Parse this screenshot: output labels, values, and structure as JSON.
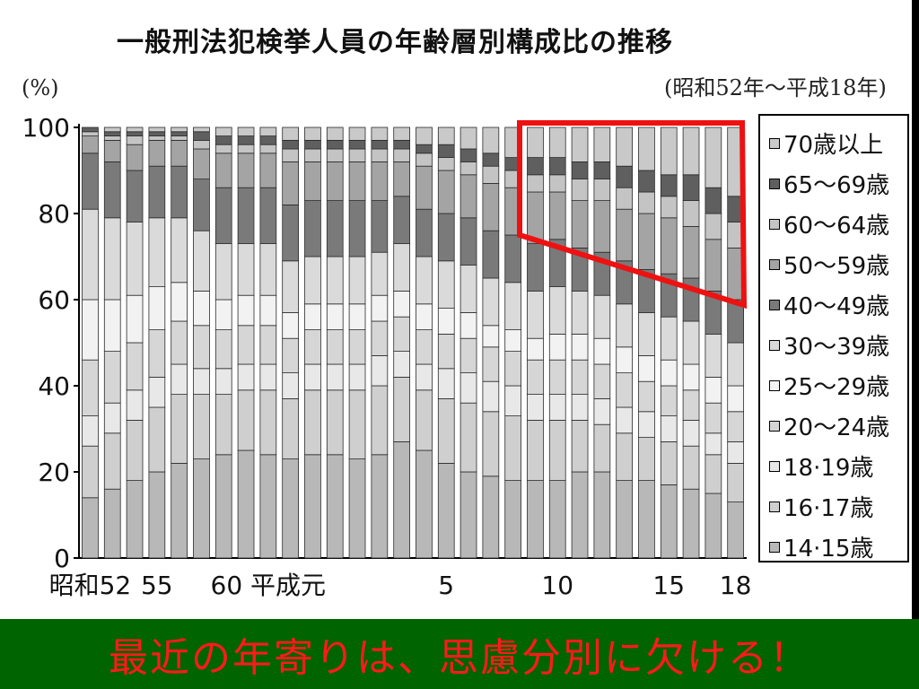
{
  "title": "一般刑法犯検挙人員の年齢層別構成比の推移",
  "period": "(昭和52年～平成18年)",
  "y_unit": "(%)",
  "banner": "最近の年寄りは、思慮分別に欠ける！",
  "colors": {
    "banner_bg": "#006400",
    "banner_text": "#ff1a1a",
    "highlight": "#ee1111"
  },
  "chart_data": {
    "type": "bar",
    "stacked": true,
    "percent": true,
    "ylim": [
      0,
      100
    ],
    "y_ticks": [
      "0",
      "20",
      "40",
      "60",
      "80",
      "100"
    ],
    "x_tick_labels": [
      {
        "index": 0,
        "label": "昭和52"
      },
      {
        "index": 3,
        "label": "55"
      },
      {
        "index": 8,
        "label": "60 平成元"
      },
      {
        "index": 16,
        "label": "5"
      },
      {
        "index": 21,
        "label": "10"
      },
      {
        "index": 26,
        "label": "15"
      },
      {
        "index": 29,
        "label": "18"
      }
    ],
    "bar_count": 30,
    "series": [
      {
        "name": "14·15歳",
        "color": "#b8b8b8",
        "values": [
          14,
          16,
          18,
          20,
          22,
          23,
          24,
          25,
          24,
          23,
          24,
          24,
          23,
          24,
          27,
          25,
          22,
          20,
          19,
          18,
          18,
          18,
          20,
          20,
          18,
          18,
          17,
          16,
          15,
          13
        ]
      },
      {
        "name": "16·17歳",
        "color": "#cfcfcf",
        "values": [
          12,
          13,
          14,
          15,
          16,
          15,
          14,
          14,
          15,
          14,
          15,
          15,
          16,
          16,
          15,
          14,
          15,
          16,
          15,
          15,
          14,
          14,
          12,
          11,
          11,
          10,
          10,
          10,
          9,
          9
        ]
      },
      {
        "name": "18·19歳",
        "color": "#e8e8e8",
        "values": [
          7,
          7,
          7,
          7,
          7,
          6,
          6,
          6,
          6,
          6,
          6,
          6,
          6,
          7,
          6,
          6,
          7,
          7,
          7,
          7,
          6,
          6,
          6,
          6,
          6,
          6,
          6,
          6,
          5,
          5
        ]
      },
      {
        "name": "20～24歳",
        "color": "#d6d6d6",
        "values": [
          13,
          12,
          11,
          11,
          10,
          10,
          9,
          9,
          9,
          8,
          8,
          8,
          8,
          8,
          8,
          8,
          8,
          8,
          8,
          8,
          8,
          8,
          8,
          8,
          8,
          7,
          7,
          7,
          7,
          7
        ]
      },
      {
        "name": "25～29歳",
        "color": "#f2f2f2",
        "values": [
          14,
          12,
          11,
          10,
          9,
          8,
          7,
          7,
          7,
          6,
          6,
          6,
          6,
          6,
          6,
          6,
          6,
          6,
          5,
          5,
          5,
          6,
          6,
          6,
          6,
          6,
          6,
          6,
          6,
          6
        ]
      },
      {
        "name": "30～39歳",
        "color": "#dadada",
        "values": [
          21,
          19,
          17,
          16,
          15,
          14,
          13,
          12,
          12,
          12,
          11,
          11,
          11,
          10,
          11,
          11,
          11,
          11,
          11,
          11,
          11,
          11,
          10,
          10,
          10,
          10,
          10,
          10,
          10,
          10
        ]
      },
      {
        "name": "40～49歳",
        "color": "#7a7a7a",
        "values": [
          13,
          13,
          12,
          12,
          12,
          12,
          13,
          13,
          13,
          13,
          13,
          13,
          13,
          12,
          11,
          11,
          11,
          11,
          11,
          11,
          11,
          11,
          10,
          10,
          10,
          10,
          10,
          10,
          10,
          10
        ]
      },
      {
        "name": "50～59歳",
        "color": "#a4a4a4",
        "values": [
          4,
          5,
          6,
          6,
          6,
          7,
          8,
          8,
          8,
          10,
          9,
          9,
          9,
          9,
          8,
          10,
          10,
          10,
          11,
          11,
          12,
          11,
          11,
          12,
          12,
          13,
          13,
          12,
          12,
          12
        ]
      },
      {
        "name": "60～64歳",
        "color": "#c4c4c4",
        "values": [
          1,
          1,
          2,
          1,
          1,
          2,
          2,
          2,
          2,
          3,
          3,
          3,
          3,
          3,
          3,
          3,
          3,
          3,
          4,
          4,
          4,
          4,
          5,
          5,
          5,
          5,
          5,
          6,
          6,
          6
        ]
      },
      {
        "name": "65～69歳",
        "color": "#5f5f5f",
        "values": [
          1,
          1,
          1,
          1,
          1,
          2,
          2,
          2,
          2,
          2,
          2,
          2,
          2,
          2,
          2,
          2,
          3,
          3,
          3,
          3,
          4,
          4,
          4,
          4,
          5,
          5,
          5,
          6,
          6,
          6
        ]
      },
      {
        "name": "70歳以上",
        "color": "#c9c9c9",
        "values": [
          0,
          1,
          1,
          1,
          1,
          1,
          2,
          2,
          2,
          3,
          3,
          3,
          3,
          3,
          3,
          4,
          4,
          5,
          6,
          7,
          7,
          7,
          8,
          8,
          9,
          10,
          11,
          11,
          14,
          16
        ]
      }
    ]
  }
}
